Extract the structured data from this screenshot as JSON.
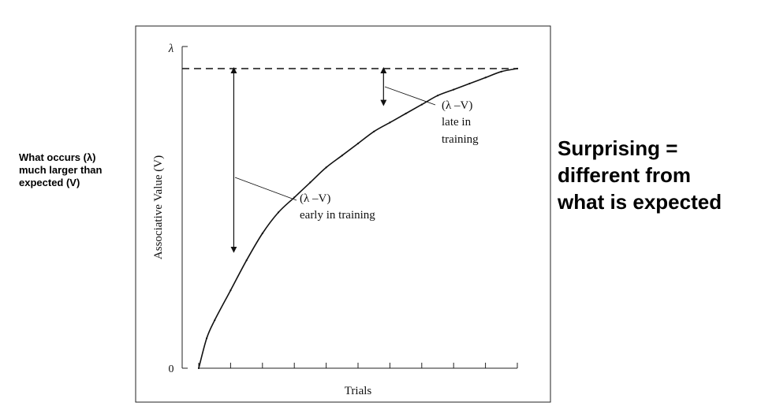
{
  "slide": {
    "left_note": [
      "What occurs (λ)",
      "much larger than",
      "expected (V)"
    ],
    "right_note": [
      "Surprising =",
      "different from",
      "what is expected"
    ]
  },
  "chart_data": {
    "type": "line",
    "title": "",
    "xlabel": "Trials",
    "ylabel": "Associative Value (V)",
    "y_ticks": [
      "λ",
      "0"
    ],
    "ylim": [
      0,
      1
    ],
    "xlim": [
      0,
      10
    ],
    "x_tick_count": 11,
    "grid": false,
    "asymptote": {
      "label": "λ",
      "value": 1.0,
      "style": "dashed"
    },
    "series": [
      {
        "x": [
          0,
          0.25,
          0.5,
          1,
          1.5,
          2,
          2.5,
          3,
          3.5,
          4,
          4.5,
          5,
          5.5,
          6,
          6.5,
          7,
          7.5,
          8,
          8.5,
          9,
          9.5,
          10
        ],
        "values": [
          0,
          0.1,
          0.16,
          0.26,
          0.36,
          0.45,
          0.52,
          0.57,
          0.62,
          0.67,
          0.71,
          0.75,
          0.79,
          0.82,
          0.85,
          0.88,
          0.91,
          0.93,
          0.95,
          0.97,
          0.99,
          1.0
        ]
      }
    ],
    "annotations": [
      {
        "label": [
          "(λ –V)",
          "early in training"
        ],
        "x": 1.1,
        "y_from": 0.39,
        "y_to": 1.0
      },
      {
        "label": [
          "(λ –V)",
          "late in",
          "training"
        ],
        "x": 5.8,
        "y_from": 0.88,
        "y_to": 1.0
      }
    ]
  }
}
